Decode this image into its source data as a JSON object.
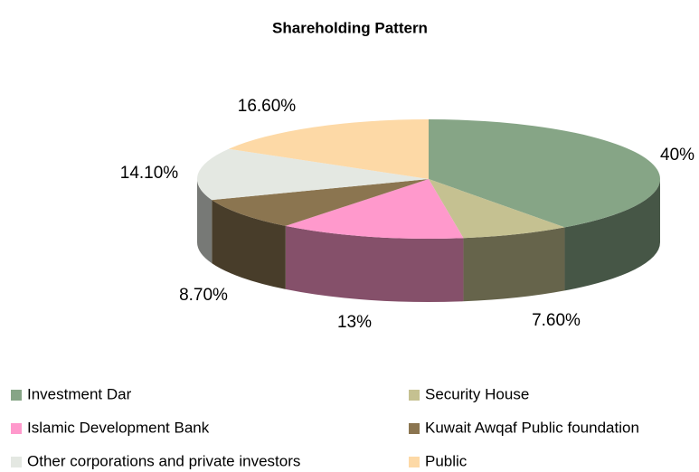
{
  "chart_data": {
    "type": "pie3d",
    "title": "Shareholding Pattern",
    "categories": [
      "Investment Dar",
      "Security House",
      "Islamic Development Bank",
      "Kuwait Awqaf Public foundation",
      "Other corporations and private investors",
      "Public"
    ],
    "values": [
      40,
      7.6,
      13,
      8.7,
      14.1,
      16.6
    ],
    "value_labels": [
      "40%",
      "7.60%",
      "13%",
      "8.70%",
      "14.10%",
      "16.60%"
    ],
    "colors": [
      "#86a586",
      "#c5c191",
      "#ff99cc",
      "#8b7550",
      "#e4e8e2",
      "#fdd9a6"
    ],
    "legend": "bottom"
  }
}
